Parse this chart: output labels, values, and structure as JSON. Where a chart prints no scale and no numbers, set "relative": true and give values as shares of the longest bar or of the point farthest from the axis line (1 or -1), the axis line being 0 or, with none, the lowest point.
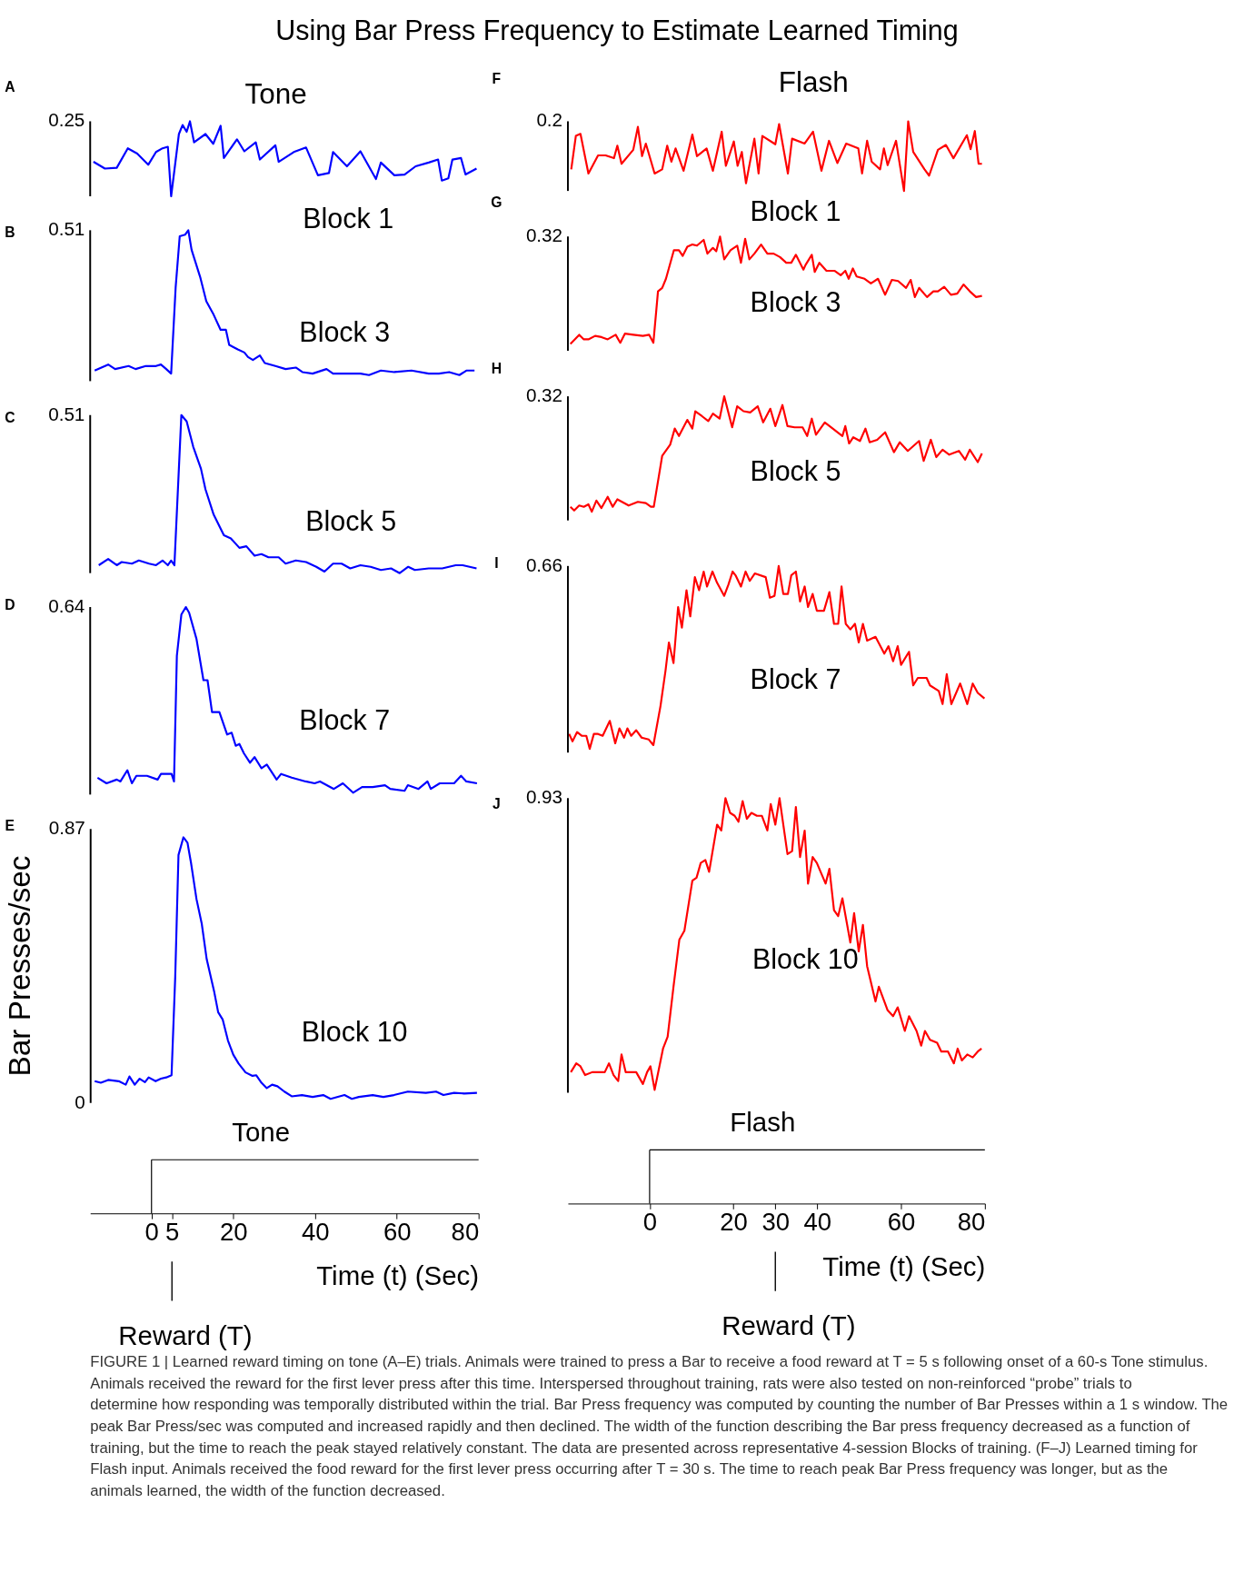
{
  "chart_data": [
    {
      "type": "line",
      "title": "Using Bar Press Frequency to Estimate Learned Timing",
      "subtitle": "Tone",
      "xlim": [
        -15,
        80
      ],
      "relative": true,
      "tick_labels": false,
      "annotations": [
        "A",
        "Block 1",
        "0.25",
        "FIGURE 1 | Learned reward timing on tone (A–E) trials. Animals were trained to press a Bar to receive a food reward at T = 5 s following onset of a 60-s Tone stimulus. Animals received the reward for the first lever press after this time. Interspersed throughout training, rats were also tested on non-reinforced “probe” trials to determine how responding was temporally distributed within the trial. Bar Press frequency was computed by counting the number of Bar Presses within a 1 s window. The peak Bar Press/sec was computed and increased rapidly and then declined. The width of the function describing the Bar press frequency decreased as a function of training, but the time to reach the peak stayed relatively constant. The data are presented across representative 4-session Blocks of training. (F–J) Learned timing for Flash input. Animals received the food reward for the first lever press occurring after T = 30 s. The time to reach peak Bar Press frequency was longer, but as the animals learned, the width of the function decreased."
      ],
      "series": [
        {
          "color": "#0000ff",
          "x": [
            -14.2,
            -11.4,
            -8.5,
            -5.8,
            -3.5,
            -0.8,
            1.1,
            2.7,
            4.0,
            4.8,
            6.7,
            7.6,
            8.6,
            9.4,
            10.4,
            13.2,
            15.1,
            16.9,
            17.7,
            20.9,
            22.7,
            25.5,
            26.5,
            30.3,
            31.1,
            34.8,
            37.8,
            40.7,
            43.4,
            44.4,
            47.8,
            51.1,
            54.9,
            56.1,
            59.4,
            61.9,
            64.6,
            67.8,
            70.1,
            71.0,
            72.6,
            73.6,
            75.7,
            76.8,
            79.5
          ],
          "values": [
            0.46,
            0.37,
            0.38,
            0.64,
            0.57,
            0.42,
            0.59,
            0.64,
            0.66,
            0,
            0.83,
            0.95,
            0.86,
            1,
            0.72,
            0.83,
            0.7,
            0.94,
            0.51,
            0.76,
            0.6,
            0.72,
            0.49,
            0.68,
            0.46,
            0.59,
            0.65,
            0.28,
            0.31,
            0.59,
            0.4,
            0.6,
            0.23,
            0.45,
            0.28,
            0.29,
            0.4,
            0.45,
            0.49,
            0.21,
            0.24,
            0.49,
            0.51,
            0.29,
            0.37
          ]
        }
      ]
    },
    {
      "type": "line",
      "xlim": [
        -15,
        80
      ],
      "relative": true,
      "tick_labels": false,
      "annotations": [
        "B",
        "Block 3",
        "0.51"
      ],
      "series": [
        {
          "color": "#0000ff",
          "x": [
            -13.9,
            -10.6,
            -8.9,
            -5.6,
            -3.9,
            -1.4,
            1.1,
            2.3,
            3.6,
            4.8,
            5.9,
            6.9,
            8.2,
            9.0,
            9.8,
            11.9,
            13.4,
            15.2,
            16.9,
            18.2,
            19.0,
            21.1,
            22.7,
            23.6,
            24.8,
            26.5,
            27.7,
            30.3,
            32.8,
            35.3,
            36.9,
            39.4,
            42.8,
            44.4,
            47.8,
            51.1,
            53.2,
            56.1,
            59.4,
            63.6,
            67.8,
            70.3,
            72.8,
            75.3,
            77.0,
            79.0
          ],
          "values": [
            0.07,
            0.11,
            0.08,
            0.1,
            0.08,
            0.1,
            0.1,
            0.11,
            0.08,
            0.05,
            0.62,
            0.96,
            0.97,
            1,
            0.87,
            0.69,
            0.53,
            0.44,
            0.34,
            0.34,
            0.24,
            0.21,
            0.19,
            0.16,
            0.14,
            0.17,
            0.12,
            0.1,
            0.08,
            0.09,
            0.06,
            0.05,
            0.08,
            0.05,
            0.05,
            0.05,
            0.04,
            0.07,
            0.06,
            0.07,
            0.05,
            0.05,
            0.06,
            0.04,
            0.07,
            0.07
          ]
        }
      ]
    },
    {
      "type": "line",
      "xlim": [
        -15,
        80
      ],
      "relative": true,
      "tick_labels": false,
      "annotations": [
        "C",
        "Block 5",
        "0.51"
      ],
      "series": [
        {
          "color": "#0000ff",
          "x": [
            -12.9,
            -10.6,
            -8.5,
            -7.3,
            -4.8,
            -3.1,
            -0.6,
            1.1,
            2.7,
            4.0,
            4.8,
            5.6,
            7.3,
            8.6,
            10.2,
            12.1,
            13.2,
            15.2,
            17.7,
            19.4,
            21.5,
            23.2,
            25.2,
            26.9,
            28.6,
            31.1,
            32.8,
            35.3,
            37.8,
            40.3,
            42.3,
            44.4,
            46.5,
            48.6,
            51.1,
            53.6,
            56.1,
            58.6,
            60.7,
            62.8,
            64.4,
            67.8,
            71.1,
            74.4,
            76.1,
            79.5
          ],
          "values": [
            0.05,
            0.09,
            0.05,
            0.07,
            0.06,
            0.08,
            0.06,
            0.05,
            0.08,
            0.05,
            0.08,
            0.05,
            1,
            0.96,
            0.8,
            0.66,
            0.53,
            0.37,
            0.24,
            0.22,
            0.16,
            0.17,
            0.11,
            0.12,
            0.1,
            0.1,
            0.06,
            0.08,
            0.07,
            0.04,
            0.01,
            0.06,
            0.06,
            0.03,
            0.05,
            0.04,
            0.02,
            0.03,
            0,
            0.04,
            0.02,
            0.03,
            0.03,
            0.05,
            0.05,
            0.03
          ]
        }
      ]
    },
    {
      "type": "line",
      "xlim": [
        -15,
        80
      ],
      "relative": true,
      "tick_labels": false,
      "annotations": [
        "D",
        "Block 7",
        "0.64"
      ],
      "series": [
        {
          "color": "#0000ff",
          "x": [
            -13.2,
            -11.0,
            -8.5,
            -7.6,
            -5.9,
            -4.8,
            -3.7,
            -1.1,
            1.5,
            2.3,
            4.9,
            5.5,
            6.2,
            7.3,
            8.4,
            9.2,
            11.0,
            12.7,
            13.7,
            14.8,
            16.6,
            18.5,
            19.6,
            20.6,
            21.5,
            22.6,
            24.1,
            25.2,
            26.9,
            28.2,
            30.6,
            31.7,
            34.3,
            37.7,
            39.9,
            41.2,
            44.6,
            46.8,
            49.3,
            51.5,
            54.1,
            57.1,
            58.4,
            61.9,
            62.7,
            65.3,
            67.5,
            68.3,
            70.5,
            74.0,
            75.7,
            77.0,
            79.6
          ],
          "values": [
            0.09,
            0.06,
            0.08,
            0.07,
            0.13,
            0.06,
            0.1,
            0.1,
            0.08,
            0.11,
            0.11,
            0.07,
            0.74,
            0.96,
            1,
            0.97,
            0.83,
            0.61,
            0.61,
            0.44,
            0.44,
            0.32,
            0.33,
            0.26,
            0.27,
            0.22,
            0.17,
            0.2,
            0.14,
            0.16,
            0.08,
            0.11,
            0.09,
            0.07,
            0.06,
            0.07,
            0.03,
            0.06,
            0.01,
            0.04,
            0.04,
            0.05,
            0.03,
            0.02,
            0.05,
            0.03,
            0.07,
            0.03,
            0.06,
            0.06,
            0.1,
            0.07,
            0.06
          ]
        }
      ]
    },
    {
      "type": "line",
      "xlim": [
        -15,
        80
      ],
      "ylim": [
        0,
        0.87
      ],
      "yticks": [
        0,
        0.87
      ],
      "xticks": [
        0,
        5,
        20,
        40,
        60,
        80
      ],
      "xlabel": "Time (t) (Sec)",
      "ylabel": "Bar Presses/sec",
      "annotations": [
        "E",
        "Block 10",
        "Tone",
        {
          "text": "Reward (T)",
          "x": 5
        }
      ],
      "series": [
        {
          "color": "#0000ff",
          "x": [
            -13.9,
            -12.4,
            -10.6,
            -8.0,
            -6.3,
            -5.4,
            -4.1,
            -2.9,
            -1.6,
            -0.7,
            1.0,
            2.3,
            3.6,
            4.9,
            5.8,
            6.6,
            7.8,
            8.8,
            9.7,
            11.0,
            12.3,
            13.5,
            15.3,
            16.3,
            17.4,
            18.7,
            20.0,
            21.3,
            23.0,
            24.7,
            25.6,
            26.9,
            28.2,
            29.5,
            30.8,
            32.5,
            34.3,
            36.8,
            39.4,
            42.0,
            43.8,
            47.2,
            49.0,
            50.7,
            54.1,
            56.7,
            59.3,
            62.7,
            67.1,
            69.6,
            71.4,
            74.0,
            76.5,
            79.6
          ],
          "values": [
            0.068,
            0.063,
            0.072,
            0.068,
            0.057,
            0.083,
            0.057,
            0.076,
            0.065,
            0.08,
            0.068,
            0.076,
            0.08,
            0.087,
            0.399,
            0.786,
            0.842,
            0.825,
            0.758,
            0.646,
            0.567,
            0.455,
            0.354,
            0.287,
            0.264,
            0.197,
            0.152,
            0.124,
            0.096,
            0.085,
            0.087,
            0.063,
            0.046,
            0.057,
            0.052,
            0.035,
            0.02,
            0.024,
            0.018,
            0.024,
            0.012,
            0.024,
            0.012,
            0.018,
            0.024,
            0.018,
            0.024,
            0.035,
            0.031,
            0.035,
            0.024,
            0.031,
            0.029,
            0.031
          ]
        }
      ]
    },
    {
      "type": "line",
      "subtitle": "Flash",
      "xlim": [
        -19.5,
        80
      ],
      "relative": true,
      "tick_labels": false,
      "annotations": [
        "F",
        "Block 1",
        "0.2"
      ],
      "series": [
        {
          "color": "#ff0000",
          "x": [
            -18.7,
            -17.6,
            -16.5,
            -14.6,
            -12.3,
            -10.5,
            -8.5,
            -7.7,
            -6.7,
            -3.9,
            -2.8,
            -1.8,
            -0.9,
            1.2,
            3.0,
            4.2,
            5.2,
            6.2,
            8.1,
            10.2,
            11.3,
            13.6,
            15.1,
            17.2,
            18.2,
            20.1,
            21.0,
            22.0,
            23.0,
            25.0,
            26.0,
            26.9,
            30.0,
            30.9,
            33.0,
            34.0,
            37.0,
            39.0,
            41.0,
            42.8,
            44.8,
            46.9,
            49.8,
            50.7,
            51.9,
            53.0,
            55.0,
            55.9,
            56.8,
            58.8,
            60.7,
            61.7,
            62.9,
            65.6,
            66.7,
            68.8,
            70.7,
            72.5,
            75.7,
            76.6,
            77.6,
            78.5,
            79.3
          ],
          "values": [
            0.31,
            0.79,
            0.82,
            0.25,
            0.51,
            0.51,
            0.47,
            0.65,
            0.39,
            0.59,
            0.92,
            0.5,
            0.68,
            0.25,
            0.31,
            0.65,
            0.42,
            0.61,
            0.29,
            0.81,
            0.5,
            0.61,
            0.29,
            0.85,
            0.36,
            0.71,
            0.36,
            0.56,
            0.11,
            0.75,
            0.25,
            0.79,
            0.67,
            0.96,
            0.25,
            0.75,
            0.68,
            0.85,
            0.29,
            0.72,
            0.4,
            0.68,
            0.61,
            0.25,
            0.72,
            0.42,
            0.31,
            0.61,
            0.37,
            0.72,
            0,
            1,
            0.56,
            0.31,
            0.22,
            0.59,
            0.66,
            0.47,
            0.8,
            0.6,
            0.86,
            0.39,
            0.39
          ]
        }
      ]
    },
    {
      "type": "line",
      "xlim": [
        -19.5,
        80
      ],
      "relative": true,
      "tick_labels": false,
      "annotations": [
        "G",
        "Block 3",
        "0.32"
      ],
      "series": [
        {
          "color": "#ff0000",
          "x": [
            -18.9,
            -16.8,
            -15.7,
            -14.6,
            -13.0,
            -11.5,
            -10.0,
            -8.1,
            -7.0,
            -5.9,
            -3.9,
            -1.6,
            -0.1,
            0.9,
            2.0,
            3.0,
            3.9,
            5.8,
            7.0,
            7.9,
            9.0,
            10.2,
            11.3,
            12.9,
            13.8,
            15.1,
            15.9,
            16.8,
            17.8,
            19.3,
            20.9,
            21.8,
            22.8,
            23.8,
            25.0,
            26.6,
            28.1,
            29.6,
            31.1,
            32.6,
            33.8,
            34.9,
            36.7,
            37.2,
            38.7,
            39.4,
            40.5,
            42.2,
            44.1,
            45.6,
            46.7,
            47.5,
            48.5,
            49.4,
            51.3,
            52.8,
            54.5,
            56.2,
            57.8,
            59.3,
            61.2,
            62.3,
            63.3,
            64.3,
            66.2,
            67.7,
            68.8,
            70.3,
            71.9,
            73.4,
            74.9,
            76.4,
            77.9,
            79.3
          ],
          "values": [
            0.06,
            0.14,
            0.1,
            0.1,
            0.13,
            0.12,
            0.1,
            0.14,
            0.07,
            0.15,
            0.14,
            0.13,
            0.14,
            0.07,
            0.52,
            0.55,
            0.63,
            0.88,
            0.88,
            0.83,
            0.91,
            0.93,
            0.92,
            0.97,
            0.85,
            0.9,
            0.87,
            1,
            0.8,
            0.88,
            0.92,
            0.77,
            0.98,
            0.8,
            0.85,
            0.93,
            0.85,
            0.85,
            0.82,
            0.77,
            0.77,
            0.84,
            0.71,
            0.75,
            0.84,
            0.69,
            0.77,
            0.7,
            0.7,
            0.66,
            0.7,
            0.63,
            0.72,
            0.65,
            0.63,
            0.59,
            0.63,
            0.49,
            0.62,
            0.61,
            0.55,
            0.62,
            0.47,
            0.55,
            0.47,
            0.52,
            0.52,
            0.56,
            0.49,
            0.5,
            0.58,
            0.52,
            0.47,
            0.48
          ]
        }
      ]
    },
    {
      "type": "line",
      "xlim": [
        -19.5,
        80
      ],
      "relative": true,
      "tick_labels": false,
      "annotations": [
        "H",
        "Block 5",
        "0.32"
      ],
      "series": [
        {
          "color": "#ff0000",
          "x": [
            -18.9,
            -18.0,
            -16.8,
            -15.7,
            -14.6,
            -13.8,
            -12.7,
            -11.5,
            -10.0,
            -8.8,
            -7.7,
            -5.0,
            -2.8,
            -0.9,
            0.3,
            1.0,
            3.0,
            4.9,
            6.0,
            7.0,
            9.0,
            10.2,
            10.9,
            12.5,
            14.0,
            15.1,
            16.7,
            17.8,
            19.7,
            20.9,
            22.4,
            24.0,
            25.8,
            27.1,
            28.8,
            30.0,
            31.7,
            32.9,
            34.6,
            36.5,
            37.6,
            38.7,
            39.7,
            41.8,
            43.7,
            46.0,
            46.7,
            47.6,
            48.6,
            50.2,
            51.5,
            52.5,
            54.3,
            56.2,
            58.3,
            59.7,
            61.6,
            64.3,
            65.4,
            67.1,
            68.4,
            69.9,
            71.5,
            73.8,
            75.3,
            76.4,
            78.3,
            79.3
          ],
          "values": [
            0.11,
            0.08,
            0.12,
            0.11,
            0.13,
            0.07,
            0.16,
            0.1,
            0.19,
            0.11,
            0.17,
            0.12,
            0.15,
            0.14,
            0.11,
            0.11,
            0.52,
            0.61,
            0.74,
            0.68,
            0.81,
            0.74,
            0.88,
            0.84,
            0.8,
            0.86,
            0.82,
            1,
            0.75,
            0.92,
            0.88,
            0.87,
            0.92,
            0.79,
            0.9,
            0.76,
            0.93,
            0.76,
            0.75,
            0.75,
            0.68,
            0.82,
            0.69,
            0.79,
            0.74,
            0.68,
            0.76,
            0.62,
            0.67,
            0.64,
            0.74,
            0.63,
            0.65,
            0.71,
            0.55,
            0.63,
            0.56,
            0.64,
            0.48,
            0.65,
            0.51,
            0.57,
            0.53,
            0.56,
            0.49,
            0.57,
            0.47,
            0.54
          ]
        }
      ]
    },
    {
      "type": "line",
      "xlim": [
        -19.5,
        80
      ],
      "relative": true,
      "tick_labels": false,
      "annotations": [
        "I",
        "Block 7",
        "0.66"
      ],
      "series": [
        {
          "color": "#ff0000",
          "x": [
            -19.2,
            -18.4,
            -17.3,
            -16.2,
            -15.1,
            -14.3,
            -13.3,
            -12.3,
            -11.2,
            -9.5,
            -8.2,
            -7.2,
            -6.1,
            -5.3,
            -4.4,
            -3.2,
            -1.9,
            -0.2,
            0.9,
            2.6,
            3.8,
            4.6,
            5.7,
            6.8,
            7.7,
            8.8,
            9.7,
            10.8,
            11.8,
            12.9,
            13.7,
            15.0,
            16.1,
            17.8,
            18.8,
            19.8,
            20.5,
            21.8,
            22.9,
            23.9,
            25.1,
            27.7,
            28.7,
            29.8,
            30.8,
            31.9,
            33.0,
            33.8,
            34.9,
            35.9,
            37.0,
            37.8,
            38.9,
            39.9,
            41.6,
            42.9,
            44.0,
            45.0,
            45.8,
            46.8,
            47.9,
            49.0,
            49.9,
            50.9,
            51.9,
            53.9,
            56.0,
            57.0,
            58.1,
            59.2,
            60.0,
            61.9,
            62.9,
            64.0,
            66.1,
            66.9,
            69.0,
            69.9,
            70.9,
            72.0,
            74.1,
            75.8,
            77.1,
            78.3,
            79.9
          ],
          "values": [
            0.1,
            0.06,
            0.11,
            0.09,
            0.09,
            0.02,
            0.1,
            0.1,
            0.09,
            0.17,
            0.05,
            0.13,
            0.08,
            0.13,
            0.09,
            0.12,
            0.08,
            0.07,
            0.04,
            0.25,
            0.44,
            0.59,
            0.48,
            0.78,
            0.67,
            0.87,
            0.73,
            0.94,
            0.87,
            0.97,
            0.89,
            0.97,
            0.91,
            0.84,
            0.9,
            0.97,
            0.95,
            0.89,
            0.97,
            0.92,
            0.96,
            0.94,
            0.83,
            0.84,
            1,
            0.85,
            0.85,
            0.95,
            0.97,
            0.81,
            0.89,
            0.78,
            0.85,
            0.76,
            0.76,
            0.86,
            0.69,
            0.69,
            0.89,
            0.69,
            0.66,
            0.69,
            0.59,
            0.69,
            0.6,
            0.62,
            0.53,
            0.57,
            0.49,
            0.57,
            0.47,
            0.54,
            0.36,
            0.4,
            0.4,
            0.36,
            0.33,
            0.26,
            0.42,
            0.26,
            0.37,
            0.26,
            0.37,
            0.32,
            0.29
          ]
        }
      ]
    },
    {
      "type": "line",
      "xlim": [
        -19.5,
        80
      ],
      "relative": true,
      "tick_labels": "x",
      "xticks": [
        0,
        20,
        30,
        40,
        60,
        80
      ],
      "xlabel": "Time (t) (Sec)",
      "annotations": [
        "J",
        "Block 10",
        "0.93",
        "Flash",
        {
          "text": "Reward (T)",
          "x": 30
        }
      ],
      "series": [
        {
          "color": "#ff0000",
          "x": [
            -18.8,
            -17.5,
            -16.5,
            -15.4,
            -13.7,
            -12.0,
            -10.7,
            -9.7,
            -8.6,
            -7.5,
            -6.7,
            -5.7,
            -4.4,
            -3.2,
            -1.6,
            -0.6,
            0.2,
            1.2,
            3.2,
            4.3,
            5.7,
            7.1,
            8.3,
            10.2,
            11.2,
            12.2,
            13.3,
            14.2,
            16.1,
            17.1,
            18.1,
            19.2,
            20.3,
            21.2,
            22.2,
            23.2,
            24.3,
            25.6,
            26.8,
            28.1,
            28.9,
            30.0,
            31.0,
            32.9,
            34.0,
            34.9,
            35.9,
            37.0,
            37.8,
            38.9,
            39.9,
            42.0,
            42.9,
            44.0,
            45.0,
            46.0,
            47.9,
            48.8,
            49.9,
            50.9,
            51.9,
            53.9,
            54.7,
            56.8,
            58.1,
            59.2,
            60.9,
            61.9,
            63.7,
            64.8,
            65.7,
            66.9,
            68.6,
            69.6,
            71.2,
            72.6,
            73.5,
            74.5,
            75.8,
            77.1,
            78.3,
            79.2
          ],
          "values": [
            0.07,
            0.1,
            0.09,
            0.06,
            0.07,
            0.07,
            0.07,
            0.1,
            0.06,
            0.04,
            0.13,
            0.07,
            0.07,
            0.07,
            0.03,
            0.07,
            0.09,
            0.01,
            0.15,
            0.19,
            0.36,
            0.52,
            0.55,
            0.72,
            0.73,
            0.78,
            0.79,
            0.75,
            0.91,
            0.89,
            1,
            0.95,
            0.94,
            0.92,
            0.99,
            0.93,
            0.95,
            0.94,
            0.94,
            0.89,
            0.98,
            0.91,
            1,
            0.81,
            0.82,
            0.97,
            0.8,
            0.89,
            0.71,
            0.8,
            0.78,
            0.71,
            0.76,
            0.62,
            0.6,
            0.66,
            0.51,
            0.61,
            0.48,
            0.57,
            0.43,
            0.31,
            0.36,
            0.28,
            0.26,
            0.29,
            0.21,
            0.26,
            0.21,
            0.16,
            0.21,
            0.18,
            0.17,
            0.14,
            0.14,
            0.1,
            0.15,
            0.11,
            0.13,
            0.12,
            0.14,
            0.15
          ]
        }
      ]
    }
  ]
}
